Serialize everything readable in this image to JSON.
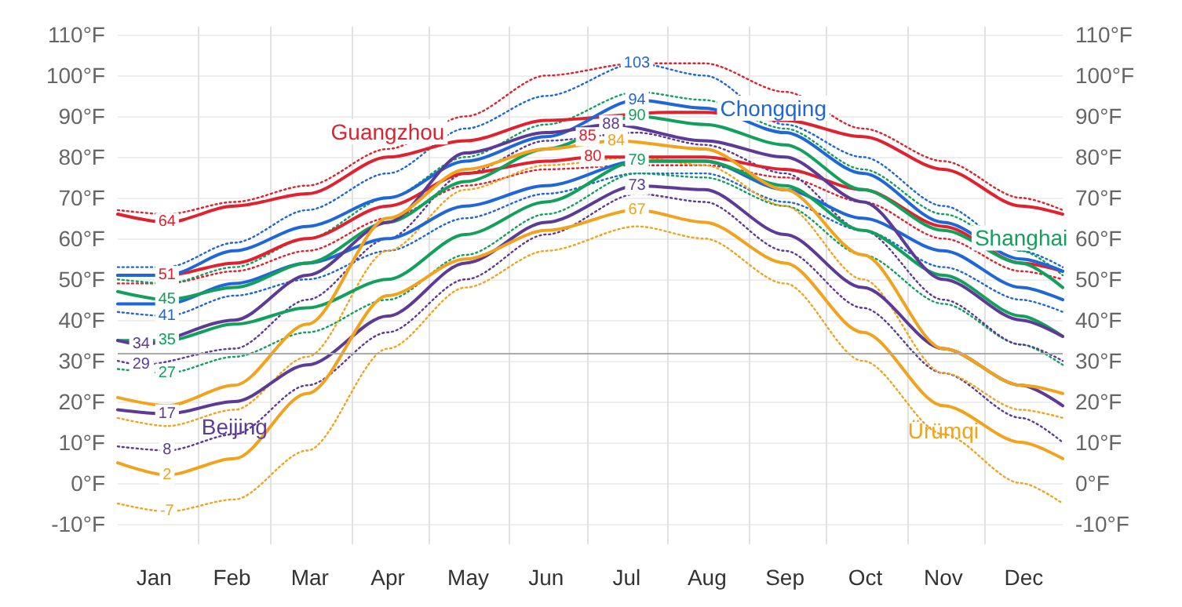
{
  "chart_data": {
    "type": "line",
    "x": [
      "--01-01",
      "--01-20",
      "--02-15",
      "--03-15",
      "--04-15",
      "--05-15",
      "--06-15",
      "--07-20",
      "--08-15",
      "--09-15",
      "--10-15",
      "--11-15",
      "--12-15",
      "--12-31"
    ],
    "xlim": [
      "--01-01",
      "--12-31"
    ],
    "xticks": [
      {
        "value": "--01-15",
        "label": "Jan"
      },
      {
        "value": "--02-14",
        "label": "Feb"
      },
      {
        "value": "--03-16",
        "label": "Mar"
      },
      {
        "value": "--04-15",
        "label": "Apr"
      },
      {
        "value": "--05-16",
        "label": "May"
      },
      {
        "value": "--06-15",
        "label": "Jun"
      },
      {
        "value": "--07-16",
        "label": "Jul"
      },
      {
        "value": "--08-16",
        "label": "Aug"
      },
      {
        "value": "--09-15",
        "label": "Sep"
      },
      {
        "value": "--10-16",
        "label": "Oct"
      },
      {
        "value": "--11-15",
        "label": "Nov"
      },
      {
        "value": "--12-16",
        "label": "Dec"
      },
      {
        "value": "--02-01",
        "label": null
      },
      {
        "value": "--03-01",
        "label": null
      },
      {
        "value": "--04-01",
        "label": null
      },
      {
        "value": "--05-01",
        "label": null
      },
      {
        "value": "--06-01",
        "label": null
      },
      {
        "value": "--07-01",
        "label": null
      },
      {
        "value": "--08-01",
        "label": null
      },
      {
        "value": "--09-01",
        "label": null
      },
      {
        "value": "--10-01",
        "label": null
      },
      {
        "value": "--11-01",
        "label": null
      },
      {
        "value": "--12-01",
        "label": null
      }
    ],
    "ylim": [
      -15,
      112
    ],
    "yticks": [
      {
        "value": -10,
        "label": "-10°F"
      },
      {
        "value": 0,
        "label": "0°F"
      },
      {
        "value": 10,
        "label": "10°F"
      },
      {
        "value": 20,
        "label": "20°F"
      },
      {
        "value": 30,
        "label": "30°F"
      },
      {
        "value": 40,
        "label": "40°F"
      },
      {
        "value": 50,
        "label": "50°F"
      },
      {
        "value": 60,
        "label": "60°F"
      },
      {
        "value": 70,
        "label": "70°F"
      },
      {
        "value": 80,
        "label": "80°F"
      },
      {
        "value": 90,
        "label": "90°F"
      },
      {
        "value": 100,
        "label": "100°F"
      },
      {
        "value": 110,
        "label": "110°F"
      }
    ],
    "y2lim": [
      -15,
      112
    ],
    "y2ticks": [
      {
        "value": -10,
        "label": "-10°F"
      },
      {
        "value": 0,
        "label": "0°F"
      },
      {
        "value": 10,
        "label": "10°F"
      },
      {
        "value": 20,
        "label": "20°F"
      },
      {
        "value": 30,
        "label": "30°F"
      },
      {
        "value": 40,
        "label": "40°F"
      },
      {
        "value": 50,
        "label": "50°F"
      },
      {
        "value": 60,
        "label": "60°F"
      },
      {
        "value": 70,
        "label": "70°F"
      },
      {
        "value": 80,
        "label": "80°F"
      },
      {
        "value": 90,
        "label": "90°F"
      },
      {
        "value": 100,
        "label": "100°F"
      },
      {
        "value": 110,
        "label": "110°F"
      }
    ],
    "grid": true,
    "legend": false,
    "marker": "none",
    "ref_lines": [
      {
        "axis": "y",
        "value": 32,
        "label": null,
        "color": "#aaaaaa"
      }
    ],
    "annotations": [
      {
        "text": "85",
        "x": "--07-01",
        "y": 85
      }
    ],
    "series": [
      {
        "name": "Guangzhou",
        "color": "#e0212f",
        "x": [
          "--01-01",
          "--01-20",
          "--02-15",
          "--03-15",
          "--04-15",
          "--05-15",
          "--06-15",
          "--08-01",
          "--08-15",
          "--09-15",
          "--10-15",
          "--11-15",
          "--12-15",
          "--12-31"
        ],
        "values": [
          66,
          64,
          68,
          71,
          80,
          84,
          89,
          91,
          91,
          89,
          85,
          77,
          68,
          66
        ],
        "value_labels": [
          null,
          "64",
          null,
          null,
          null,
          null,
          null,
          null,
          null,
          null,
          null,
          null,
          null,
          null
        ]
      },
      {
        "color": "#e0212f",
        "x": [
          "--01-01",
          "--01-20",
          "--02-15",
          "--03-15",
          "--04-15",
          "--05-15",
          "--06-15",
          "--07-03",
          "--08-15",
          "--09-15",
          "--10-15",
          "--11-15",
          "--12-15",
          "--12-31"
        ],
        "values": [
          51,
          51,
          54,
          60,
          68,
          76,
          79,
          80,
          80,
          77,
          72,
          63,
          54,
          52
        ],
        "value_labels": [
          null,
          "51",
          null,
          null,
          null,
          null,
          null,
          "80",
          null,
          null,
          null,
          null,
          null,
          null
        ]
      },
      {
        "color": "#e0212f",
        "line_style": "dotted",
        "values": [
          67,
          66,
          69,
          73,
          82,
          90,
          100,
          103,
          103,
          96,
          87,
          79,
          70,
          67
        ]
      },
      {
        "color": "#e0212f",
        "line_style": "dotted",
        "values": [
          49,
          49,
          52,
          57,
          65,
          73,
          77,
          78,
          78,
          75,
          69,
          60,
          52,
          50
        ]
      },
      {
        "name": "Chongqing",
        "color": "#1f66d8",
        "values": [
          51,
          51,
          57,
          63,
          70,
          79,
          85,
          94,
          92,
          86,
          76,
          64,
          55,
          52
        ],
        "value_labels": [
          null,
          null,
          null,
          null,
          null,
          null,
          null,
          "94",
          null,
          null,
          null,
          null,
          null,
          null
        ]
      },
      {
        "color": "#1f66d8",
        "values": [
          44,
          44,
          49,
          54,
          60,
          68,
          73,
          79,
          79,
          72,
          65,
          57,
          48,
          45
        ]
      },
      {
        "color": "#1f66d8",
        "line_style": "dotted",
        "values": [
          53,
          53,
          59,
          67,
          76,
          87,
          95,
          103,
          100,
          88,
          80,
          68,
          57,
          53
        ],
        "value_labels": [
          null,
          null,
          null,
          null,
          null,
          null,
          null,
          "103",
          null,
          null,
          null,
          null,
          null,
          null
        ]
      },
      {
        "color": "#1f66d8",
        "line_style": "dotted",
        "values": [
          42,
          41,
          46,
          50,
          57,
          65,
          71,
          76,
          76,
          69,
          62,
          53,
          45,
          42
        ],
        "value_labels": [
          null,
          "41",
          null,
          null,
          null,
          null,
          null,
          null,
          null,
          null,
          null,
          null,
          null,
          null
        ]
      },
      {
        "name": "Shanghai",
        "color": "#12a05c",
        "values": [
          47,
          45,
          48,
          54,
          64,
          74,
          82,
          90,
          88,
          83,
          72,
          62,
          54,
          48
        ],
        "value_labels": [
          null,
          "45",
          null,
          null,
          null,
          null,
          null,
          "90",
          null,
          null,
          null,
          null,
          null,
          null
        ]
      },
      {
        "color": "#12a05c",
        "values": [
          35,
          35,
          39,
          43,
          50,
          61,
          69,
          79,
          79,
          73,
          62,
          51,
          41,
          36
        ],
        "value_labels": [
          null,
          "35",
          null,
          null,
          null,
          null,
          null,
          "79",
          null,
          null,
          null,
          null,
          null,
          null
        ]
      },
      {
        "color": "#12a05c",
        "line_style": "dotted",
        "values": [
          50,
          49,
          53,
          60,
          70,
          80,
          88,
          96,
          94,
          87,
          77,
          66,
          57,
          51
        ]
      },
      {
        "color": "#12a05c",
        "line_style": "dotted",
        "values": [
          28,
          27,
          31,
          37,
          45,
          56,
          66,
          76,
          75,
          68,
          56,
          44,
          34,
          29
        ],
        "value_labels": [
          null,
          "27",
          null,
          null,
          null,
          null,
          null,
          null,
          null,
          null,
          null,
          null,
          null,
          null
        ]
      },
      {
        "color": "#5c3b97",
        "x": [
          "--01-01",
          "--01-10",
          "--02-15",
          "--03-15",
          "--04-15",
          "--05-15",
          "--06-15",
          "--07-10",
          "--08-15",
          "--09-15",
          "--10-15",
          "--11-15",
          "--12-15",
          "--12-31"
        ],
        "values": [
          35,
          34,
          40,
          51,
          64,
          81,
          86,
          88,
          84,
          80,
          69,
          50,
          40,
          36
        ],
        "value_labels": [
          null,
          "34",
          null,
          null,
          null,
          null,
          null,
          "88",
          null,
          null,
          null,
          null,
          null,
          null
        ]
      },
      {
        "name": "Beijing",
        "color": "#5c3b97",
        "values": [
          18,
          17,
          20,
          29,
          41,
          54,
          64,
          73,
          72,
          61,
          48,
          33,
          24,
          19
        ],
        "value_labels": [
          null,
          "17",
          null,
          null,
          null,
          null,
          null,
          "73",
          null,
          null,
          null,
          null,
          null,
          null
        ]
      },
      {
        "color": "#5c3b97",
        "line_style": "dotted",
        "x": [
          "--01-01",
          "--01-10",
          "--02-15",
          "--03-15",
          "--04-15",
          "--05-15",
          "--06-15",
          "--07-20",
          "--08-15",
          "--09-15",
          "--10-15",
          "--11-15",
          "--12-15",
          "--12-31"
        ],
        "values": [
          30,
          29,
          33,
          45,
          60,
          76,
          84,
          86,
          83,
          76,
          62,
          45,
          34,
          30
        ],
        "value_labels": [
          null,
          "29",
          null,
          null,
          null,
          null,
          null,
          null,
          null,
          null,
          null,
          null,
          null,
          null
        ]
      },
      {
        "color": "#5c3b97",
        "line_style": "dotted",
        "values": [
          9,
          8,
          12,
          24,
          37,
          50,
          61,
          71,
          69,
          57,
          43,
          27,
          16,
          10
        ],
        "value_labels": [
          null,
          "8",
          null,
          null,
          null,
          null,
          null,
          null,
          null,
          null,
          null,
          null,
          null,
          null
        ]
      },
      {
        "color": "#f2a31d",
        "x": [
          "--01-01",
          "--01-20",
          "--02-15",
          "--03-15",
          "--04-15",
          "--05-15",
          "--06-15",
          "--07-12",
          "--08-15",
          "--09-15",
          "--10-15",
          "--11-15",
          "--12-15",
          "--12-31"
        ],
        "values": [
          21,
          19,
          24,
          39,
          65,
          77,
          82,
          84,
          82,
          72,
          56,
          33,
          24,
          22
        ],
        "value_labels": [
          null,
          null,
          null,
          null,
          null,
          null,
          null,
          "84",
          null,
          null,
          null,
          null,
          null,
          null
        ]
      },
      {
        "name": "Ürümqi",
        "color": "#f2a31d",
        "values": [
          5,
          2,
          6,
          22,
          46,
          55,
          62,
          67,
          64,
          54,
          37,
          19,
          10,
          6
        ],
        "value_labels": [
          null,
          "2",
          null,
          null,
          null,
          null,
          null,
          "67",
          null,
          null,
          null,
          null,
          null,
          null
        ]
      },
      {
        "color": "#f2a31d",
        "line_style": "dotted",
        "values": [
          16,
          14,
          18,
          31,
          57,
          72,
          78,
          80,
          78,
          68,
          50,
          27,
          18,
          16
        ]
      },
      {
        "color": "#f2a31d",
        "line_style": "dotted",
        "values": [
          -5,
          -7,
          -4,
          8,
          33,
          48,
          57,
          63,
          60,
          49,
          30,
          12,
          0,
          -5
        ],
        "value_labels": [
          null,
          "-7",
          null,
          null,
          null,
          null,
          null,
          null,
          null,
          null,
          null,
          null,
          null,
          null
        ]
      }
    ]
  }
}
